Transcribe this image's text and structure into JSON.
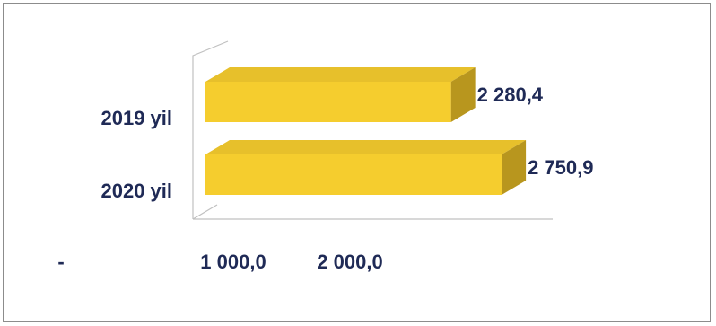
{
  "chart_data": {
    "type": "bar",
    "orientation": "horizontal",
    "style": "3d",
    "categories": [
      "2019 yil",
      "2020 yil"
    ],
    "values": [
      2280.4,
      2750.9
    ],
    "value_labels": [
      "2 280,4",
      "2 750,9"
    ],
    "x_ticks": [
      0,
      1000,
      2000
    ],
    "x_tick_labels": [
      "-",
      "1 000,0",
      "2 000,0"
    ],
    "xlim": [
      0,
      3000
    ],
    "grid": false,
    "legend": "none",
    "colors": {
      "bar_front": "#f5cd2e",
      "bar_top": "#e7c02b",
      "bar_side": "#b8961e",
      "text": "#1f2a56",
      "axis": "#c0c0c0"
    }
  }
}
